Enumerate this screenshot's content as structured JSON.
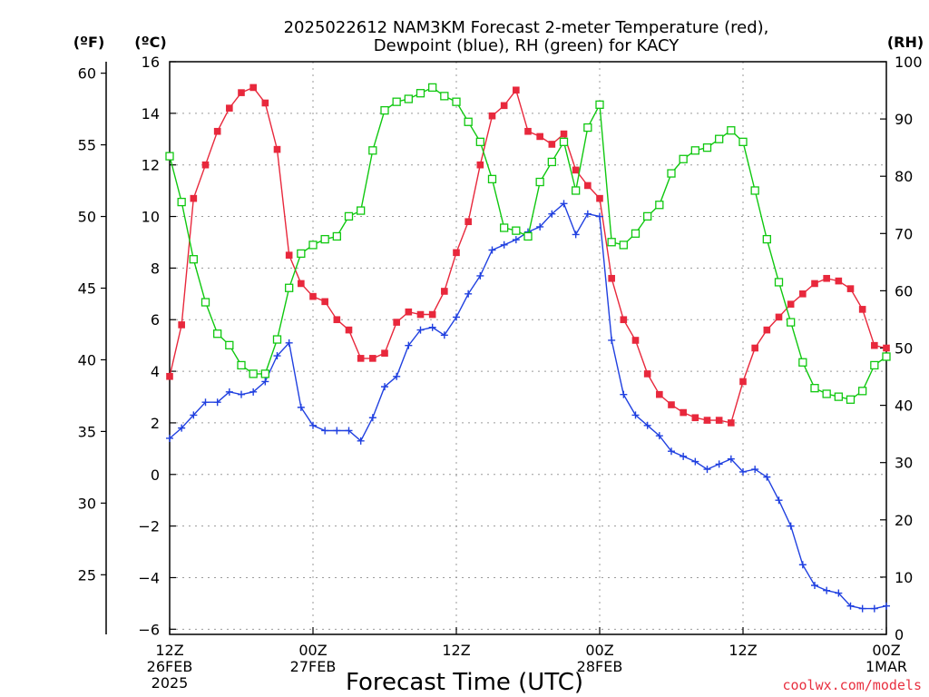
{
  "chart_data": {
    "type": "line",
    "title_lines": [
      "2025022612 NAM3KM Forecast 2-meter Temperature (red),",
      "Dewpoint (blue), RH (green) for KACY"
    ],
    "xlabel": "Forecast Time (UTC)",
    "credit": "coolwx.com/models",
    "axes": {
      "left_f": {
        "label": "(ºF)",
        "ticks": [
          25,
          30,
          35,
          40,
          45,
          50,
          55,
          60
        ]
      },
      "left_c": {
        "label": "(ºC)",
        "ticks": [
          -6,
          -4,
          -2,
          0,
          2,
          4,
          6,
          8,
          10,
          12,
          14,
          16
        ],
        "ylim": [
          -6.2,
          16
        ]
      },
      "right_rh": {
        "label": "(RH)",
        "ticks": [
          0,
          10,
          20,
          30,
          40,
          50,
          60,
          70,
          80,
          90,
          100
        ],
        "ylim": [
          0,
          100
        ]
      }
    },
    "x_range_hours": [
      0,
      36
    ],
    "x_ticks": [
      {
        "hour": 0,
        "lines": [
          "12Z",
          "26FEB",
          "2025"
        ]
      },
      {
        "hour": 7.2,
        "lines": [
          "00Z",
          "27FEB"
        ]
      },
      {
        "hour": 14.4,
        "lines": [
          "12Z"
        ]
      },
      {
        "hour": 21.6,
        "lines": [
          "00Z",
          "28FEB"
        ]
      },
      {
        "hour": 28.8,
        "lines": [
          "12Z"
        ]
      },
      {
        "hour": 36,
        "lines": [
          "00Z",
          "1MAR"
        ]
      }
    ],
    "grid": true,
    "series": [
      {
        "name": "Temperature",
        "unit": "C",
        "color": "#e8283c",
        "marker": "filled-square",
        "values": [
          3.8,
          5.8,
          10.7,
          12.0,
          13.3,
          14.2,
          14.8,
          15.0,
          14.4,
          12.6,
          8.5,
          7.4,
          6.9,
          6.7,
          6.0,
          5.6,
          4.5,
          4.5,
          4.7,
          5.9,
          6.3,
          6.2,
          6.2,
          7.1,
          8.6,
          9.8,
          12.0,
          13.9,
          14.3,
          14.9,
          13.3,
          13.1,
          12.8,
          13.2,
          11.8,
          11.2,
          10.7,
          7.6,
          6.0,
          5.2,
          3.9,
          3.1,
          2.7,
          2.4,
          2.2,
          2.1,
          2.1,
          2.0,
          3.6,
          4.9,
          5.6,
          6.1,
          6.6,
          7.0,
          7.4,
          7.6,
          7.5,
          7.2,
          6.4,
          5.0,
          4.9
        ]
      },
      {
        "name": "Dewpoint",
        "unit": "C",
        "color": "#2040e0",
        "marker": "plus",
        "values": [
          1.4,
          1.8,
          2.3,
          2.8,
          2.8,
          3.2,
          3.1,
          3.2,
          3.6,
          4.6,
          5.1,
          2.6,
          1.9,
          1.7,
          1.7,
          1.7,
          1.3,
          2.2,
          3.4,
          3.8,
          5.0,
          5.6,
          5.7,
          5.4,
          6.1,
          7.0,
          7.7,
          8.7,
          8.9,
          9.1,
          9.4,
          9.6,
          10.1,
          10.5,
          9.3,
          10.1,
          10.0,
          5.2,
          3.1,
          2.3,
          1.9,
          1.5,
          0.9,
          0.7,
          0.5,
          0.2,
          0.4,
          0.6,
          0.1,
          0.2,
          -0.1,
          -1.0,
          -2.0,
          -3.5,
          -4.3,
          -4.5,
          -4.6,
          -5.1,
          -5.2,
          -5.2,
          -5.1
        ]
      },
      {
        "name": "RH",
        "unit": "%",
        "color": "#10c810",
        "marker": "open-square",
        "values": [
          83.5,
          75.5,
          65.5,
          58.0,
          52.5,
          50.5,
          47.0,
          45.5,
          45.5,
          51.5,
          60.5,
          66.5,
          68.0,
          69.0,
          69.5,
          73.0,
          74.0,
          84.5,
          91.5,
          93.0,
          93.5,
          94.5,
          95.5,
          94.0,
          93.0,
          89.5,
          86.0,
          79.5,
          71.0,
          70.5,
          69.5,
          79.0,
          82.5,
          86.0,
          77.5,
          88.5,
          92.5,
          68.5,
          68.0,
          70.0,
          73.0,
          75.0,
          80.5,
          83.0,
          84.5,
          85.0,
          86.5,
          88.0,
          86.0,
          77.5,
          69.0,
          61.5,
          54.5,
          47.5,
          43.0,
          42.0,
          41.5,
          41.0,
          42.5,
          47.0,
          48.5
        ]
      }
    ]
  }
}
